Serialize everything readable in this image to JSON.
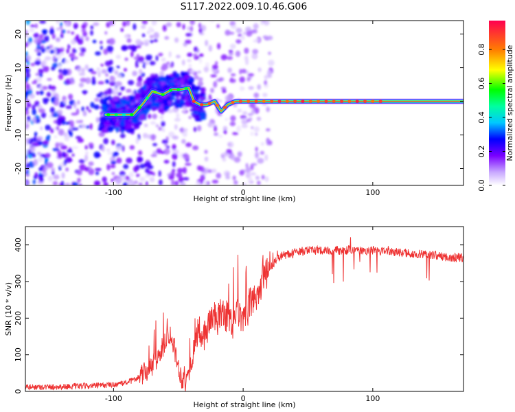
{
  "title": "S117.2022.009.10.46.G06",
  "colors": {
    "line": "#ee3333",
    "ridge": "#e23a3a"
  },
  "chart_data": [
    {
      "type": "heatmap",
      "xlabel": "Height of straight line (km)",
      "ylabel": "Frequency (Hz)",
      "xlim": [
        -168,
        170
      ],
      "ylim": [
        -25,
        24
      ],
      "x_ticks": [
        -100,
        0,
        100
      ],
      "y_ticks": [
        -20,
        -10,
        0,
        10,
        20
      ],
      "colorbar": {
        "label": "Normalized spectral amplitude",
        "range": [
          0.0,
          0.97
        ],
        "ticks": [
          0.0,
          0.2,
          0.4,
          0.6,
          0.8
        ],
        "colormap": "rainbow"
      },
      "ridge": {
        "x": [
          -105,
          -95,
          -85,
          -78,
          -70,
          -62,
          -55,
          -48,
          -42,
          -38,
          -33,
          -28,
          -22,
          -17,
          -12,
          -6,
          0,
          10,
          40,
          80,
          110,
          170
        ],
        "y": [
          -4,
          -4,
          -4,
          -1,
          3,
          2,
          3.5,
          3.5,
          4,
          0,
          -1,
          -1,
          0,
          -3,
          -1,
          0,
          0,
          0,
          0,
          0,
          0,
          0
        ]
      }
    },
    {
      "type": "line",
      "xlabel": "Height of straight line (km)",
      "ylabel": "SNR (10 * v/v)",
      "xlim": [
        -168,
        170
      ],
      "ylim": [
        0,
        450
      ],
      "x_ticks": [
        -100,
        0,
        100
      ],
      "y_ticks": [
        0,
        100,
        200,
        300,
        400
      ],
      "series": [
        {
          "x": [
            -168,
            -150,
            -130,
            -110,
            -95,
            -85,
            -78,
            -72,
            -66,
            -62,
            -58,
            -55,
            -52,
            -48,
            -44,
            -40,
            -36,
            -32,
            -28,
            -24,
            -20,
            -16,
            -12,
            -8,
            -4,
            0,
            5,
            10,
            15,
            20,
            25,
            30,
            40,
            50,
            60,
            70,
            80,
            90,
            100,
            110,
            120,
            130,
            140,
            150,
            160,
            170
          ],
          "y": [
            12,
            12,
            14,
            16,
            20,
            30,
            45,
            60,
            90,
            120,
            160,
            150,
            100,
            40,
            25,
            80,
            150,
            140,
            170,
            210,
            190,
            220,
            200,
            180,
            220,
            180,
            240,
            260,
            300,
            330,
            360,
            370,
            380,
            385,
            385,
            385,
            385,
            385,
            385,
            380,
            380,
            375,
            375,
            370,
            365,
            365
          ]
        }
      ]
    }
  ]
}
